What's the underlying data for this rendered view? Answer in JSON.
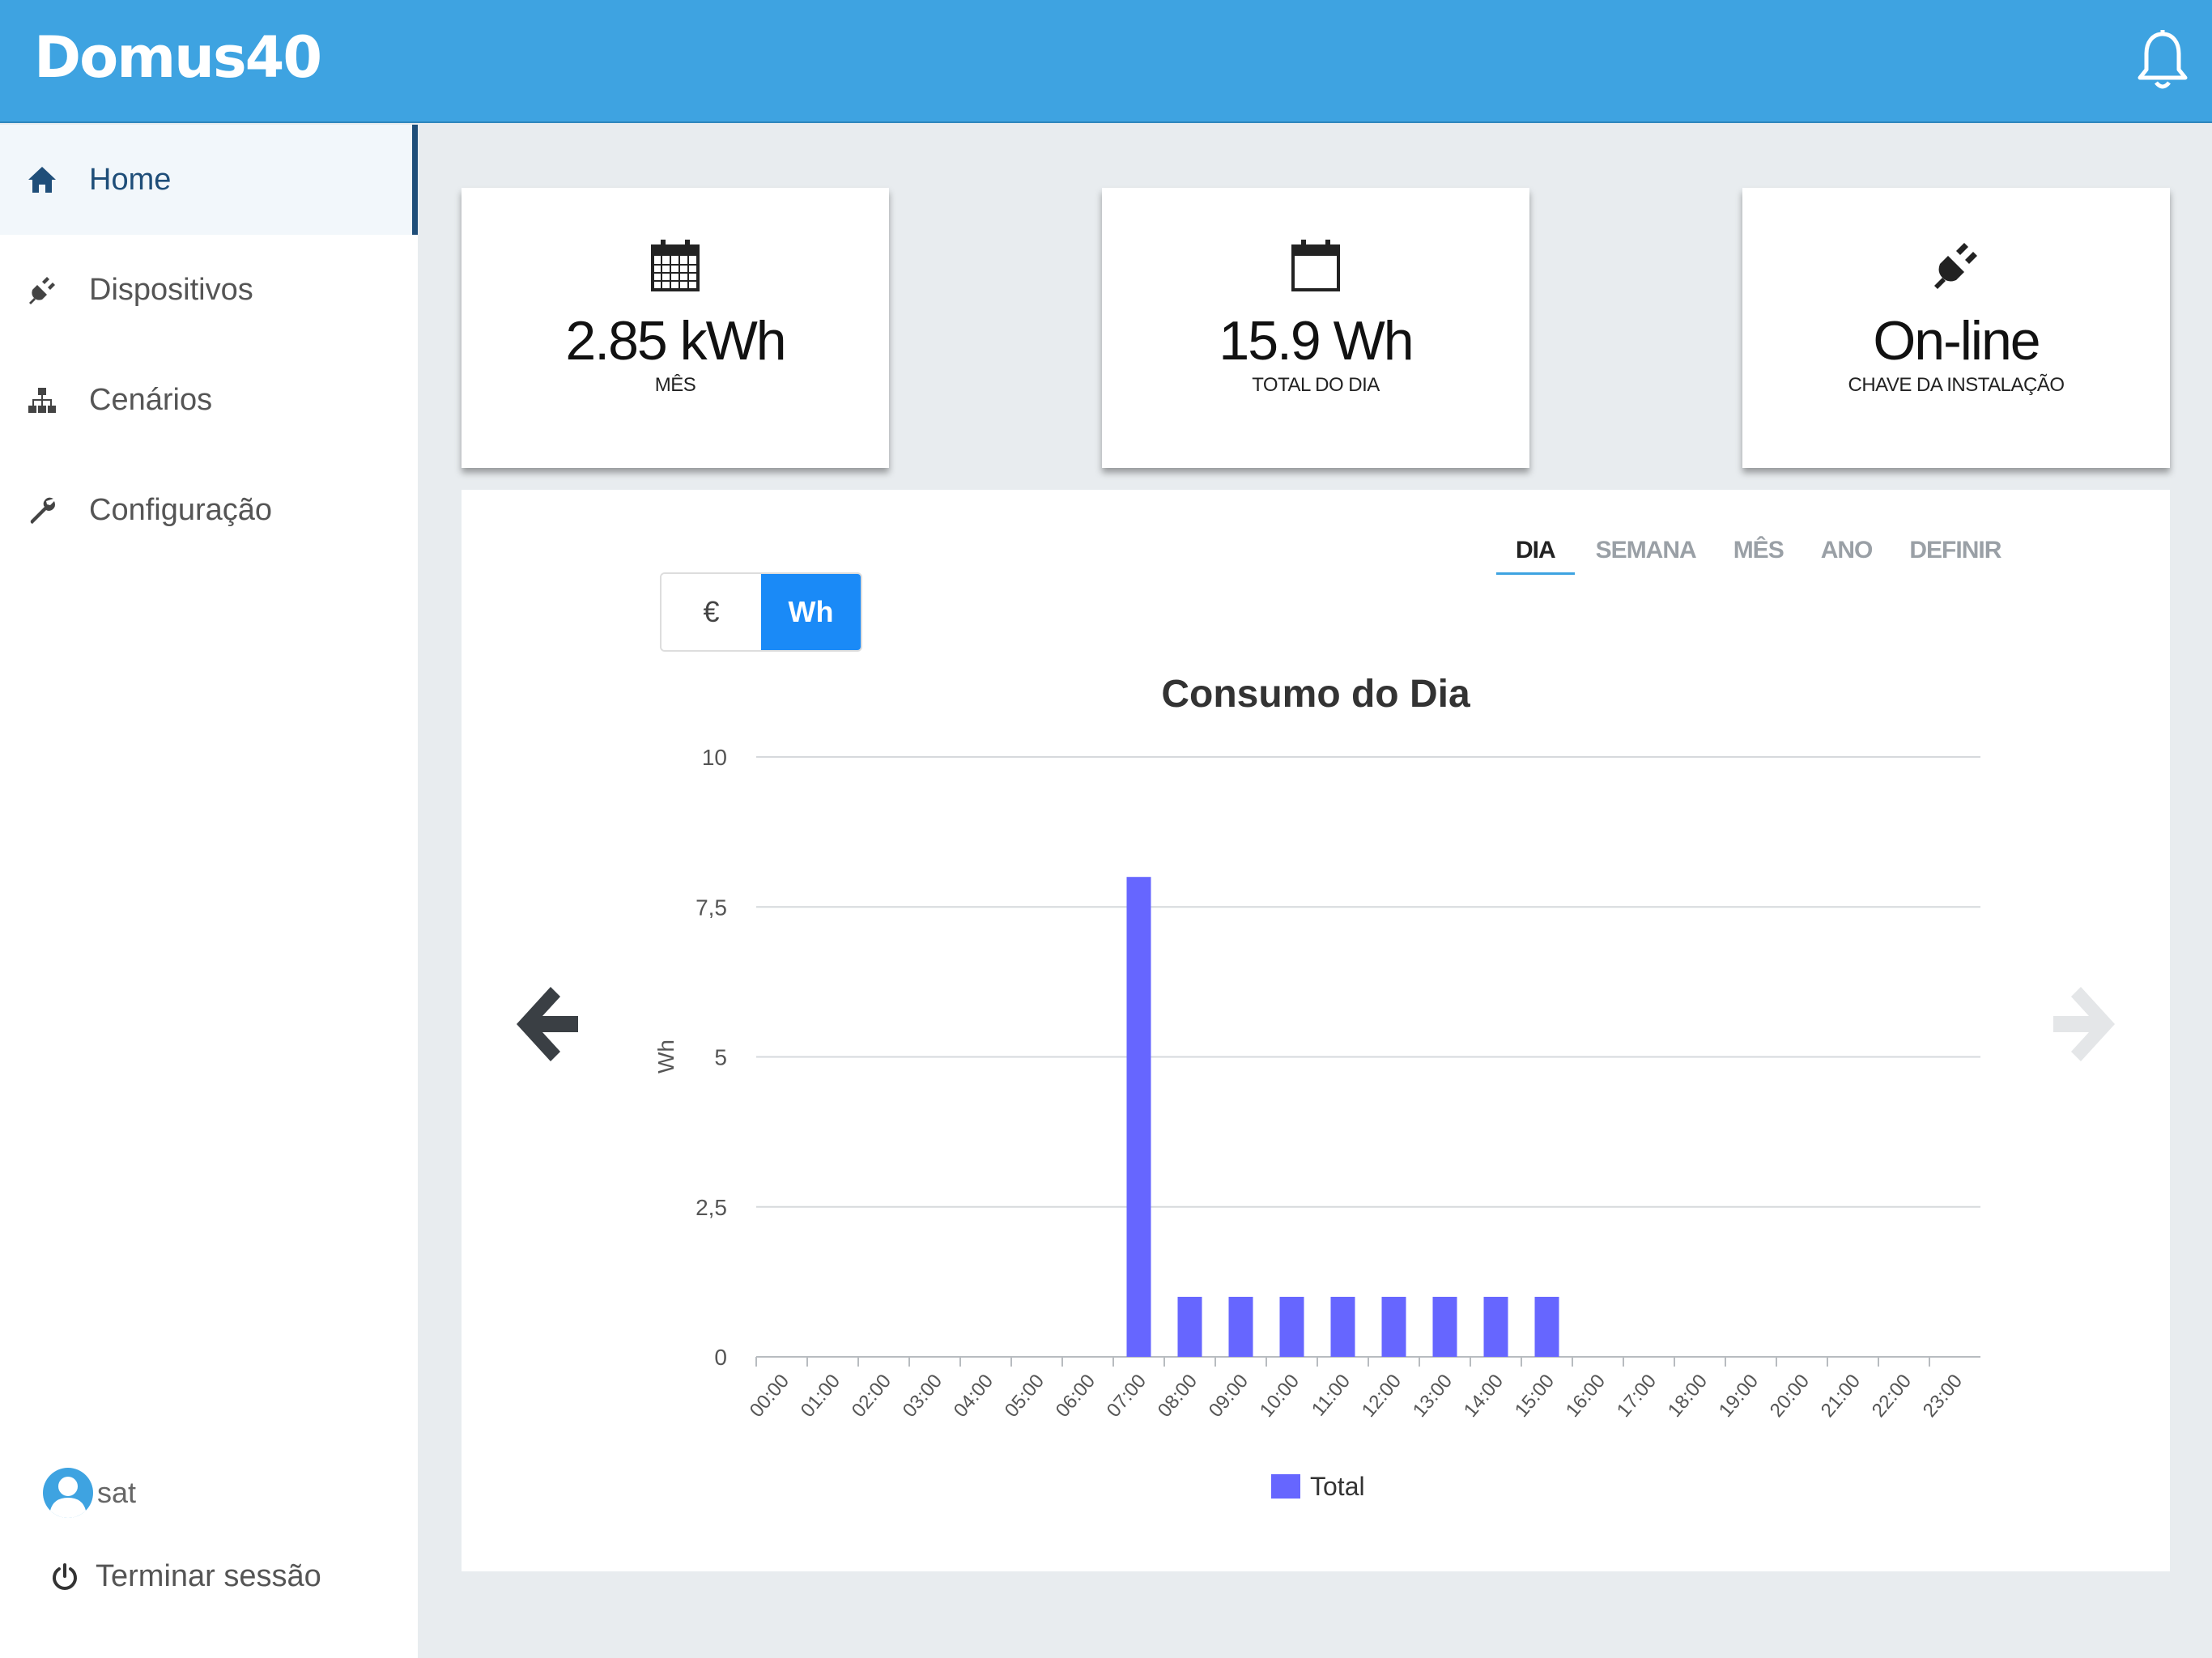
{
  "app": {
    "title": "Domus40"
  },
  "sidebar": {
    "items": [
      {
        "label": "Home",
        "icon": "home-icon",
        "active": true
      },
      {
        "label": "Dispositivos",
        "icon": "plug-icon",
        "active": false
      },
      {
        "label": "Cenários",
        "icon": "sitemap-icon",
        "active": false
      },
      {
        "label": "Configuração",
        "icon": "wrench-icon",
        "active": false
      }
    ],
    "user": "sat",
    "logout_label": "Terminar sessão"
  },
  "cards": [
    {
      "value": "2.85 kWh",
      "label": "MÊS",
      "icon": "calendar-grid-icon"
    },
    {
      "value": "15.9 Wh",
      "label": "TOTAL DO DIA",
      "icon": "calendar-icon"
    },
    {
      "value": "On-line",
      "label": "CHAVE DA INSTALAÇÃO",
      "icon": "plug-icon"
    }
  ],
  "tabs": [
    {
      "label": "DIA",
      "active": true
    },
    {
      "label": "SEMANA",
      "active": false
    },
    {
      "label": "MÊS",
      "active": false
    },
    {
      "label": "ANO",
      "active": false
    },
    {
      "label": "DEFINIR",
      "active": false
    }
  ],
  "unit_toggle": {
    "euro": "€",
    "wh": "Wh",
    "selected": "Wh"
  },
  "colors": {
    "header": "#3ea3e1",
    "bar": "#6666ff",
    "accent": "#1a8af7",
    "nav_active": "#1f4e79"
  },
  "chart_data": {
    "type": "bar",
    "title": "Consumo do Dia",
    "ylabel": "Wh",
    "xlabel": "",
    "ylim": [
      0,
      10
    ],
    "yticks": [
      "0",
      "2,5",
      "5",
      "7,5",
      "10"
    ],
    "ytick_values": [
      0,
      2.5,
      5,
      7.5,
      10
    ],
    "grid": true,
    "legend": "bottom",
    "categories": [
      "00:00",
      "01:00",
      "02:00",
      "03:00",
      "04:00",
      "05:00",
      "06:00",
      "07:00",
      "08:00",
      "09:00",
      "10:00",
      "11:00",
      "12:00",
      "13:00",
      "14:00",
      "15:00",
      "16:00",
      "17:00",
      "18:00",
      "19:00",
      "20:00",
      "21:00",
      "22:00",
      "23:00"
    ],
    "series": [
      {
        "name": "Total",
        "values": [
          0,
          0,
          0,
          0,
          0,
          0,
          0,
          8,
          1,
          1,
          1,
          1,
          1,
          1,
          1,
          1,
          0,
          0,
          0,
          0,
          0,
          0,
          0,
          0
        ]
      }
    ]
  }
}
